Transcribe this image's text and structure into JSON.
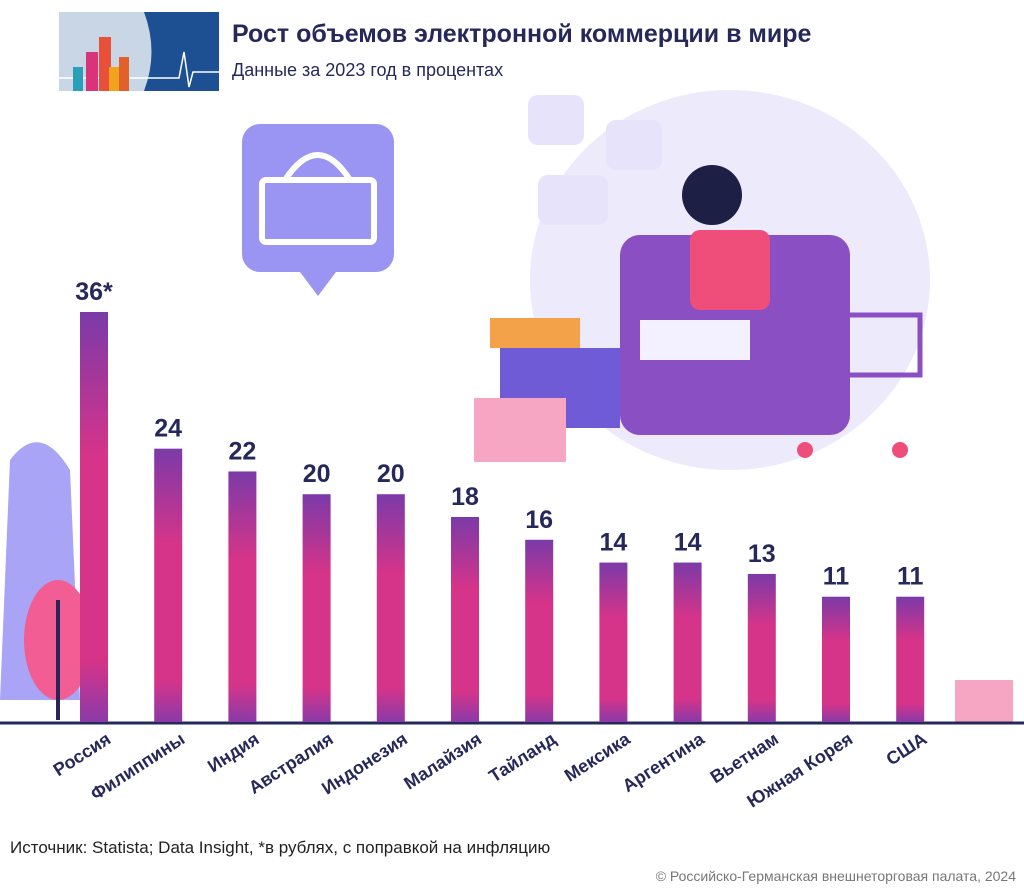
{
  "header": {
    "title": "Рост объемов электронной коммерции в мире",
    "subtitle": "Данные за 2023 год в процентах"
  },
  "footer": {
    "source": "Источник: Statista; Data Insight, *в рублях, с поправкой на инфляцию",
    "copyright": "© Российско-Германская внешнеторговая палата, 2024"
  },
  "colors": {
    "bar_top": "#7b3aa8",
    "bar_bottom": "#e0388a",
    "text": "#26285a"
  },
  "chart_data": {
    "type": "bar",
    "title": "Рост объемов электронной коммерции в мире",
    "subtitle": "Данные за 2023 год в процентах",
    "categories": [
      "Россия",
      "Филиппины",
      "Индия",
      "Австралия",
      "Индонезия",
      "Малайзия",
      "Тайланд",
      "Мексика",
      "Аргентина",
      "Вьетнам",
      "Южная Корея",
      "США"
    ],
    "values": [
      36,
      24,
      22,
      20,
      20,
      18,
      16,
      14,
      14,
      13,
      11,
      11
    ],
    "data_labels": [
      "36*",
      "24",
      "22",
      "20",
      "20",
      "18",
      "16",
      "14",
      "14",
      "13",
      "11",
      "11"
    ],
    "ylim": [
      0,
      36
    ],
    "grid": false,
    "legend": "none"
  }
}
